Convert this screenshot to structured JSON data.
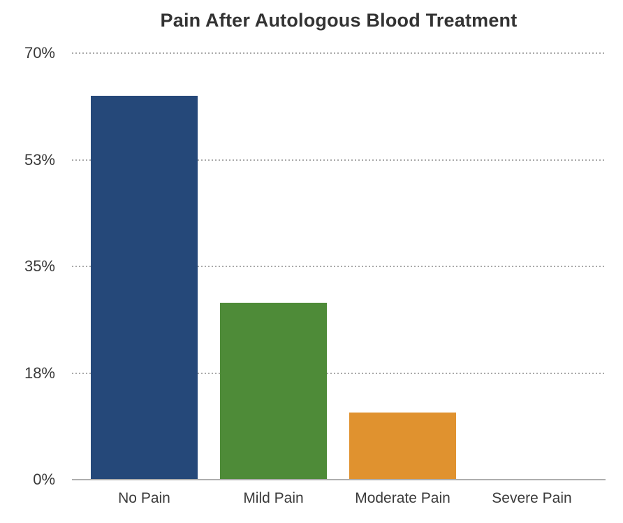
{
  "chart_data": {
    "type": "bar",
    "title": "Pain After Autologous Blood Treatment",
    "categories": [
      "No Pain",
      "Mild Pain",
      "Moderate Pain",
      "Severe Pain"
    ],
    "values": [
      63,
      29,
      11,
      0
    ],
    "unit": "%",
    "xlabel": "",
    "ylabel": "",
    "ylim": [
      0,
      70
    ],
    "yticks": [
      {
        "value": 0,
        "label": "0%"
      },
      {
        "value": 17.5,
        "label": "18%"
      },
      {
        "value": 35,
        "label": "35%"
      },
      {
        "value": 52.5,
        "label": "53%"
      },
      {
        "value": 70,
        "label": "70%"
      }
    ],
    "grid": "horizontal-dotted",
    "legend": "none",
    "bar_colors": [
      "#254879",
      "#4e8b38",
      "#e0922f",
      null
    ]
  },
  "colors": {
    "background": "#ffffff",
    "title_text": "#333333",
    "tick_text": "#3a3a3a",
    "gridline": "#a9a9a9",
    "baseline": "#aeaeae"
  }
}
